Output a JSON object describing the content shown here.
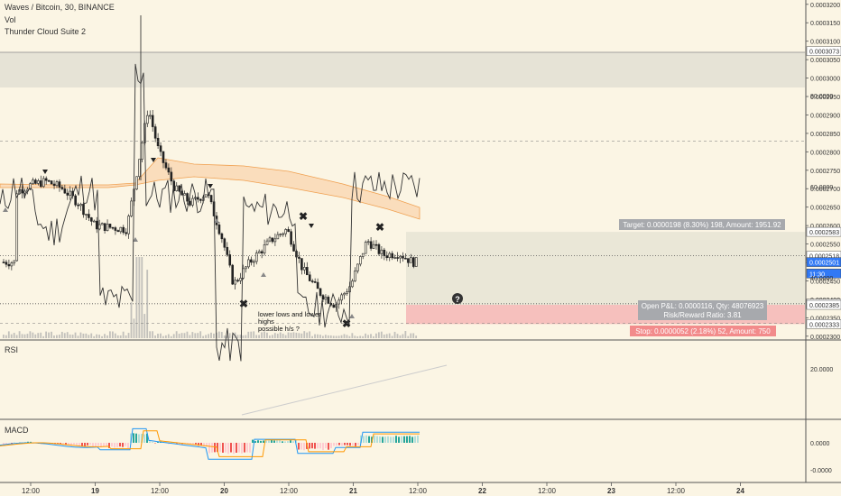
{
  "header": {
    "title": "Waves / Bitcoin, 30, BINANCE",
    "vol_label": "Vol",
    "indicator_label": "Thunder Cloud Suite 2"
  },
  "annotation": {
    "line1": "lower lows and lower",
    "line2": "highs",
    "line3": "possible h/s ?"
  },
  "position": {
    "target_label": "Target: 0.0000198 (8.30%) 198, Amount: 1951.92",
    "pnl_line1": "Open P&L: 0.0000116, Qty: 48076923",
    "pnl_line2": "Risk/Reward Ratio: 3.81",
    "stop_label": "Stop: 0.0000052 (2.18%) 52, Amount: 750",
    "entry": 0.0002385,
    "target": 0.0002583,
    "stop": 0.0002333
  },
  "price_axis": {
    "ticks": [
      "0.0003200",
      "0.0003150",
      "0.0003100",
      "0.0003050",
      "0.0003000",
      "0.0002950",
      "0.0002900",
      "0.0002850",
      "0.0002800",
      "0.0002750",
      "0.0002700",
      "0.0002650",
      "0.0002600",
      "0.0002550",
      "0.0002500",
      "0.0002450",
      "0.0002400",
      "0.0002350",
      "0.0002300"
    ],
    "tick_values": [
      0.00032,
      0.000315,
      0.00031,
      0.000305,
      0.0003,
      0.000295,
      0.00029,
      0.000285,
      0.00028,
      0.000275,
      0.00027,
      0.000265,
      0.00026,
      0.000255,
      0.00025,
      0.000245,
      0.00024,
      0.000235,
      0.00023
    ],
    "flags": [
      {
        "label": "0.0003073",
        "value": 0.0003073,
        "bg": "#ffffff",
        "fg": "#333333"
      },
      {
        "label": "0.0002583",
        "value": 0.0002583,
        "bg": "#ffffff",
        "fg": "#333333"
      },
      {
        "label": "0.0002518",
        "value": 0.0002518,
        "bg": "#ffffff",
        "fg": "#333333"
      },
      {
        "label": "0.0002501",
        "value": 0.0002501,
        "bg": "#3179f5",
        "fg": "#ffffff"
      },
      {
        "label": "11:30",
        "value": 0.000247,
        "bg": "#3179f5",
        "fg": "#ffffff"
      },
      {
        "label": "0.0002388",
        "value": 0.0002388,
        "bg": "#ffffff",
        "fg": "#333333"
      },
      {
        "label": "0.0002385",
        "value": 0.0002385,
        "bg": "#ffffff",
        "fg": "#333333"
      },
      {
        "label": "0.0002333",
        "value": 0.0002333,
        "bg": "#ffffff",
        "fg": "#333333"
      }
    ]
  },
  "rsi": {
    "label": "RSI",
    "ticks": [
      "80.0000",
      "60.0000",
      "40.0000",
      "20.0000"
    ],
    "tick_values": [
      80,
      60,
      40,
      20
    ]
  },
  "macd": {
    "label": "MACD",
    "ticks": [
      "0.0000",
      "-0.0000"
    ]
  },
  "time_axis": {
    "labels": [
      "12:00",
      "19",
      "12:00",
      "20",
      "12:00",
      "21",
      "12:00",
      "22",
      "12:00",
      "23",
      "12:00",
      "24"
    ]
  },
  "colors": {
    "up": "#26a69a",
    "down": "#ef5350",
    "cloud": "#f9c99a",
    "target_zone": "#e6e3d3",
    "stop_zone": "#f4b6b6",
    "rsi_line": "#333333",
    "macd_line": "#2196f3",
    "signal_line": "#ff9800"
  },
  "chart_data": {
    "type": "candlestick",
    "symbol": "Waves / Bitcoin",
    "timeframe": "30",
    "exchange": "BINANCE",
    "ylim": [
      0.00023,
      0.00032
    ],
    "close_path": [
      {
        "t": "18 09:00",
        "v": 0.000269
      },
      {
        "t": "18 12:00",
        "v": 0.000271
      },
      {
        "t": "18 15:00",
        "v": 0.000272
      },
      {
        "t": "18 18:00",
        "v": 0.00027
      },
      {
        "t": "18 21:00",
        "v": 0.000266
      },
      {
        "t": "19 00:00",
        "v": 0.00026
      },
      {
        "t": "19 06:00",
        "v": 0.000259
      },
      {
        "t": "19 10:00",
        "v": 0.000292
      },
      {
        "t": "19 12:00",
        "v": 0.00028
      },
      {
        "t": "19 15:00",
        "v": 0.00027
      },
      {
        "t": "19 18:00",
        "v": 0.000266
      },
      {
        "t": "19 21:00",
        "v": 0.000269
      },
      {
        "t": "20 00:00",
        "v": 0.000256
      },
      {
        "t": "20 02:00",
        "v": 0.000244
      },
      {
        "t": "20 05:00",
        "v": 0.00025
      },
      {
        "t": "20 09:00",
        "v": 0.000256
      },
      {
        "t": "20 12:00",
        "v": 0.000259
      },
      {
        "t": "20 15:00",
        "v": 0.000248
      },
      {
        "t": "20 18:00",
        "v": 0.000242
      },
      {
        "t": "20 21:00",
        "v": 0.0002385
      },
      {
        "t": "21 00:00",
        "v": 0.000244
      },
      {
        "t": "21 03:00",
        "v": 0.000256
      },
      {
        "t": "21 06:00",
        "v": 0.000252
      },
      {
        "t": "21 09:00",
        "v": 0.0002525
      },
      {
        "t": "21 11:30",
        "v": 0.0002501
      }
    ]
  }
}
